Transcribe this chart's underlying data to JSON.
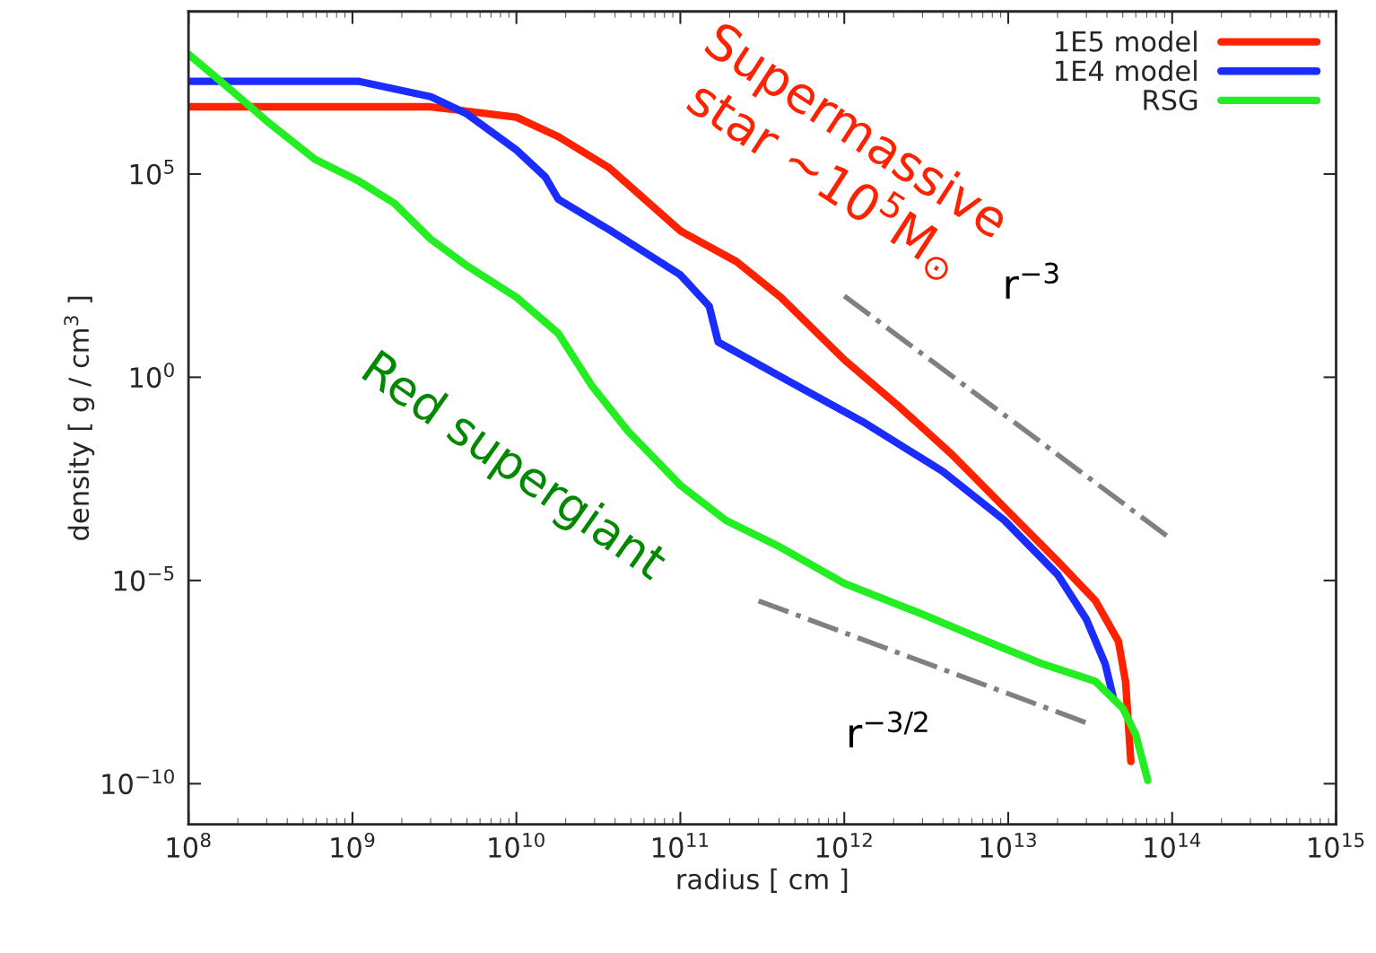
{
  "chart_data": {
    "type": "line",
    "xlabel": "radius [ cm ]",
    "ylabel": "density [ g / cm$^{3}$ ]",
    "log": "xy",
    "grid": false,
    "legend": "top right",
    "line_style": "solid",
    "marker": "none",
    "xlim": [
      100000000.0,
      1000000000000000.0
    ],
    "ylim": [
      1e-11,
      1000000000.0
    ],
    "xticks": [
      {
        "value": 100000000.0,
        "label": "10$^{8}$"
      },
      {
        "value": 1000000000.0,
        "label": "10$^{9}$"
      },
      {
        "value": 10000000000.0,
        "label": "10$^{10}$"
      },
      {
        "value": 100000000000.0,
        "label": "10$^{11}$"
      },
      {
        "value": 1000000000000.0,
        "label": "10$^{12}$"
      },
      {
        "value": 10000000000000.0,
        "label": "10$^{13}$"
      },
      {
        "value": 100000000000000.0,
        "label": "10$^{14}$"
      },
      {
        "value": 1000000000000000.0,
        "label": "10$^{15}$"
      }
    ],
    "yticks": [
      {
        "value": 1e-10,
        "label": "10$^{−10}$"
      },
      {
        "value": 1e-05,
        "label": "10$^{−5}$"
      },
      {
        "value": 1,
        "label": "10$^{0}$"
      },
      {
        "value": 100000.0,
        "label": "10$^{5}$"
      }
    ],
    "series": [
      {
        "name": "1E5 model",
        "color": "#ff2200",
        "x": [
          100000000.0,
          3000000000.0,
          10000000000.0,
          18000000000.0,
          37000000000.0,
          100000000000.0,
          220000000000.0,
          410000000000.0,
          1000000000000.0,
          2100000000000.0,
          4500000000000.0,
          10000000000000.0,
          20000000000000.0,
          34000000000000.0,
          47000000000000.0,
          52000000000000.0,
          56000000000000.0
        ],
        "values": [
          4500000.0,
          4500000.0,
          2500000.0,
          830000.0,
          140000.0,
          4000.0,
          700.0,
          93,
          2.7,
          0.21,
          0.013,
          0.0005,
          3e-05,
          3.2e-06,
          3.2e-07,
          3.2e-08,
          3.5e-10
        ]
      },
      {
        "name": "1E4 model",
        "color": "#1a2cff",
        "x": [
          100000000.0,
          1100000000.0,
          3000000000.0,
          5000000000.0,
          10000000000.0,
          15000000000.0,
          18000000000.0,
          37000000000.0,
          100000000000.0,
          150000000000.0,
          170000000000.0,
          470000000000.0,
          1300000000000.0,
          4000000000000.0,
          9500000000000.0,
          20000000000000.0,
          30000000000000.0,
          39000000000000.0,
          44000000000000.0
        ],
        "values": [
          19000000.0,
          19000000.0,
          8000000.0,
          3000000.0,
          390000.0,
          85000.0,
          24000.0,
          4200.0,
          330,
          56,
          7.4,
          0.76,
          0.08,
          0.0048,
          0.0003,
          1.4e-05,
          1.1e-06,
          9e-08,
          1.2e-08
        ]
      },
      {
        "name": "RSG",
        "color": "#22ee22",
        "x": [
          100000000.0,
          190000000.0,
          310000000.0,
          590000000.0,
          1100000000.0,
          1800000000.0,
          3000000000.0,
          5000000000.0,
          10000000000.0,
          18000000000.0,
          29000000000.0,
          48000000000.0,
          100000000000.0,
          190000000000.0,
          410000000000.0,
          1000000000000.0,
          3100000000000.0,
          7400000000000.0,
          16000000000000.0,
          34000000000000.0,
          50000000000000.0,
          60000000000000.0,
          71000000000000.0
        ],
        "values": [
          89000000.0,
          10000000.0,
          1800000.0,
          230000.0,
          66000.0,
          19000.0,
          2500.0,
          550,
          93,
          12,
          0.6,
          0.047,
          0.0022,
          0.0003,
          6.5e-05,
          8.5e-06,
          1.4e-06,
          3.2e-07,
          9e-08,
          3.3e-08,
          7.2e-09,
          1.6e-09,
          1.2e-10
        ]
      },
      {
        "type": "line",
        "color": "#808080",
        "line_style": "dashdot",
        "x": [
          1000000000000.0,
          100000000000000.0
        ],
        "values": [
          100.0,
          0.0001
        ]
      },
      {
        "type": "line",
        "color": "#808080",
        "line_style": "dashdot",
        "x": [
          300000000000.0,
          30000000000000.0
        ],
        "values": [
          3.16e-06,
          3.16e-09
        ]
      }
    ],
    "annotations": [
      "Supermassive\nstar ~10$^{5}$M$_{⊙}$",
      "Red supergiant",
      "r$^{−3}$",
      "r$^{−3/2}$"
    ]
  }
}
